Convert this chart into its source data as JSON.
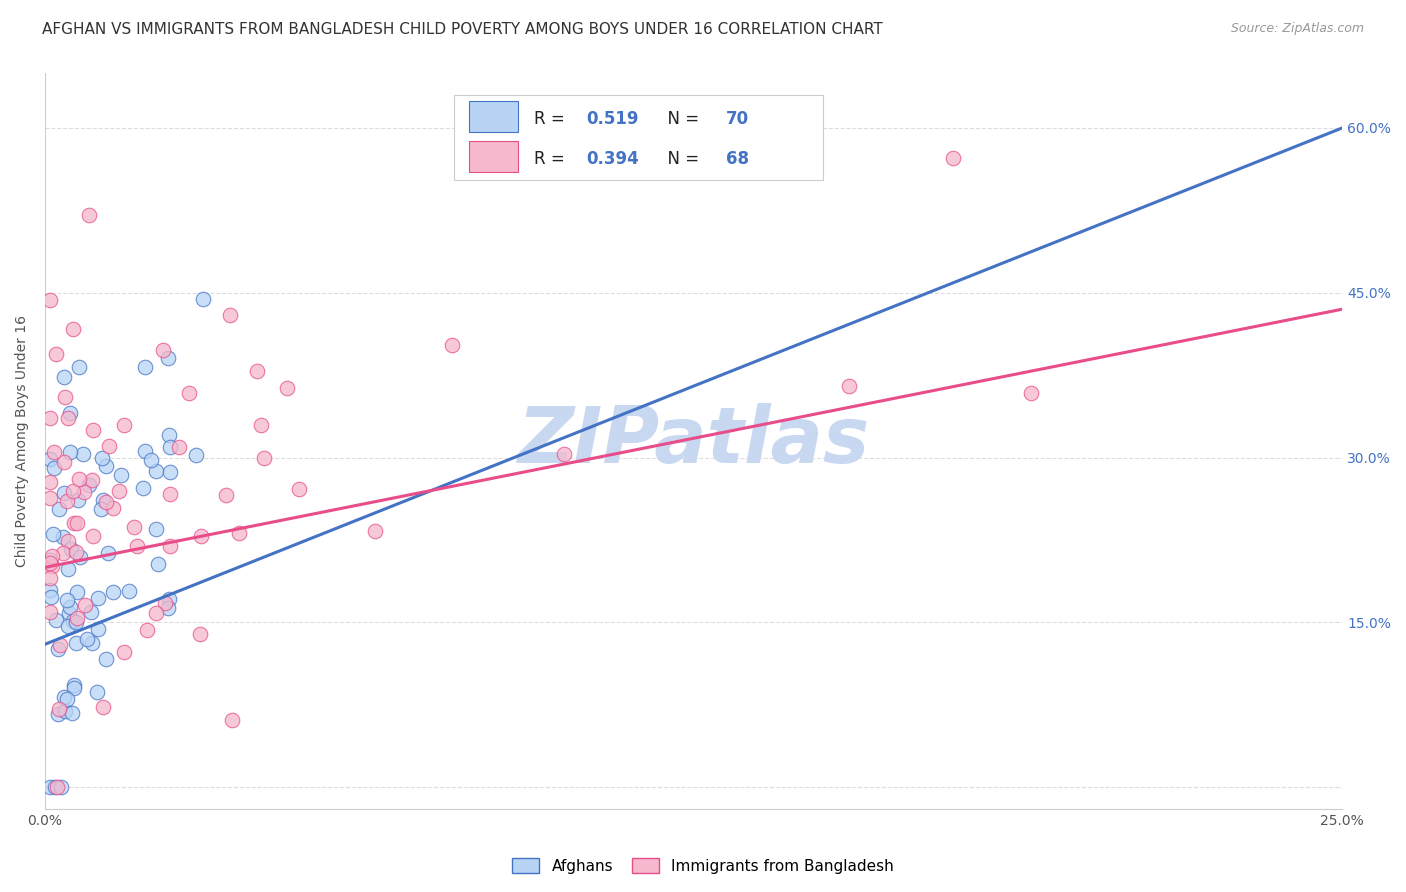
{
  "title": "AFGHAN VS IMMIGRANTS FROM BANGLADESH CHILD POVERTY AMONG BOYS UNDER 16 CORRELATION CHART",
  "source": "Source: ZipAtlas.com",
  "ylabel": "Child Poverty Among Boys Under 16",
  "xlim": [
    0.0,
    0.25
  ],
  "ylim": [
    -0.02,
    0.65
  ],
  "ytick_vals": [
    0.0,
    0.15,
    0.3,
    0.45,
    0.6
  ],
  "xtick_vals": [
    0.0,
    0.05,
    0.1,
    0.15,
    0.2,
    0.25
  ],
  "xtick_labels": [
    "0.0%",
    "",
    "",
    "",
    "",
    "25.0%"
  ],
  "right_ytick_labels": [
    "",
    "15.0%",
    "30.0%",
    "45.0%",
    "60.0%"
  ],
  "afghans_face_color": "#b8d4f5",
  "afghans_edge_color": "#4472c4",
  "bangladesh_face_color": "#f5b8cc",
  "bangladesh_edge_color": "#e84d8a",
  "afghans_line_color": "#4472c4",
  "bangladesh_line_color": "#e84d8a",
  "right_ytick_color": "#4472c4",
  "watermark": "ZIPatlas",
  "watermark_color": "#c8d8f0",
  "background_color": "#ffffff",
  "grid_color": "#dddddd",
  "afghans_R": 0.519,
  "afghans_N": 70,
  "bangladesh_R": 0.394,
  "bangladesh_N": 68,
  "af_line_x0": 0.0,
  "af_line_y0": 0.13,
  "af_line_x1": 0.25,
  "af_line_y1": 0.6,
  "ba_line_x0": 0.0,
  "ba_line_y0": 0.2,
  "ba_line_x1": 0.25,
  "ba_line_y1": 0.435,
  "title_fontsize": 11,
  "label_fontsize": 10,
  "tick_fontsize": 10,
  "legend_fontsize": 12
}
